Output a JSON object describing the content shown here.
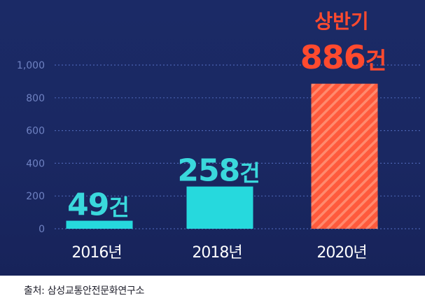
{
  "chart_data": {
    "type": "bar",
    "categories": [
      "2016년",
      "2018년",
      "2020년"
    ],
    "values": [
      49,
      258,
      886
    ],
    "data_labels": [
      "49건",
      "258건",
      "886건"
    ],
    "highlight_prefix": "상반기",
    "y_ticks": [
      0,
      200,
      400,
      600,
      800,
      1000
    ],
    "y_tick_labels": [
      "0",
      "200",
      "400",
      "600",
      "800",
      "1,000"
    ],
    "ylim": [
      0,
      1000
    ],
    "grid": true,
    "colors": {
      "bar": "#26d9dd",
      "highlight_bar": "#ff5a3c",
      "highlight_stripe": "#ff8a6e",
      "label": "#3ad8dc",
      "highlight_label": "#ff4a2e",
      "axis_text": "#6f82c2",
      "grid": "#4a62b0",
      "category_text": "#ffffff"
    }
  },
  "source": {
    "text": "출처: 삼성교통안전문화연구소"
  }
}
